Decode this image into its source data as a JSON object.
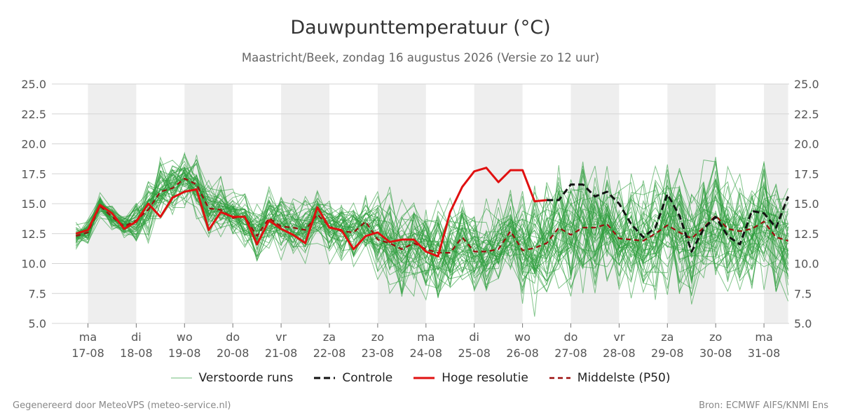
{
  "chart_data": {
    "type": "line",
    "title": "Dauwpunttemperatuur (°C)",
    "subtitle": "Maastricht/Beek, zondag 16 augustus 2026 (Versie zo 12 uur)",
    "ylim": [
      5,
      25
    ],
    "yticks": [
      "5.0",
      "7.5",
      "10.0",
      "12.5",
      "15.0",
      "17.5",
      "20.0",
      "22.5",
      "25.0"
    ],
    "xlim": [
      -0.25,
      14.5
    ],
    "x_ticks": [
      {
        "x": 0,
        "day": "ma",
        "date": "17-08"
      },
      {
        "x": 1,
        "day": "di",
        "date": "18-08"
      },
      {
        "x": 2,
        "day": "wo",
        "date": "19-08"
      },
      {
        "x": 3,
        "day": "do",
        "date": "20-08"
      },
      {
        "x": 4,
        "day": "vr",
        "date": "21-08"
      },
      {
        "x": 5,
        "day": "za",
        "date": "22-08"
      },
      {
        "x": 6,
        "day": "zo",
        "date": "23-08"
      },
      {
        "x": 7,
        "day": "ma",
        "date": "24-08"
      },
      {
        "x": 8,
        "day": "di",
        "date": "25-08"
      },
      {
        "x": 9,
        "day": "wo",
        "date": "26-08"
      },
      {
        "x": 10,
        "day": "do",
        "date": "27-08"
      },
      {
        "x": 11,
        "day": "vr",
        "date": "28-08"
      },
      {
        "x": 12,
        "day": "za",
        "date": "29-08"
      },
      {
        "x": 13,
        "day": "zo",
        "date": "30-08"
      },
      {
        "x": 14,
        "day": "ma",
        "date": "31-08"
      }
    ],
    "shaded_bands": [
      [
        0,
        1
      ],
      [
        2,
        3
      ],
      [
        4,
        5
      ],
      [
        6,
        7
      ],
      [
        8,
        9
      ],
      [
        10,
        11
      ],
      [
        12,
        13
      ],
      [
        14,
        14.5
      ]
    ],
    "grid": true,
    "legend_position": "bottom",
    "series": [
      {
        "name": "Hoge resolutie",
        "color": "#e01010",
        "style": "solid",
        "x": [
          -0.25,
          0,
          0.25,
          0.5,
          0.75,
          1,
          1.25,
          1.5,
          1.75,
          2,
          2.25,
          2.5,
          2.75,
          3,
          3.25,
          3.5,
          3.75,
          4,
          4.25,
          4.5,
          4.75,
          5,
          5.25,
          5.5,
          5.75,
          6,
          6.25,
          6.5,
          6.75,
          7,
          7.25,
          7.5,
          7.75,
          8,
          8.25,
          8.5,
          8.75,
          9,
          9.25,
          9.5
        ],
        "values": [
          12.5,
          12.8,
          14.9,
          14.2,
          12.9,
          13.5,
          15.0,
          13.9,
          15.5,
          16.0,
          16.2,
          12.8,
          14.3,
          13.9,
          13.9,
          11.6,
          13.6,
          12.9,
          12.4,
          11.7,
          14.7,
          13.0,
          12.8,
          11.2,
          12.3,
          12.6,
          11.8,
          12.0,
          12.0,
          11.0,
          10.6,
          14.3,
          16.4,
          17.7,
          18.0,
          16.8,
          17.8,
          17.8,
          15.2,
          15.3
        ]
      },
      {
        "name": "Controle",
        "color": "#111111",
        "style": "dashed",
        "x": [
          9.5,
          9.75,
          10,
          10.25,
          10.5,
          10.75,
          11,
          11.25,
          11.5,
          11.75,
          12,
          12.25,
          12.5,
          12.75,
          13,
          13.25,
          13.5,
          13.75,
          14,
          14.25,
          14.5
        ],
        "values": [
          15.3,
          15.3,
          16.6,
          16.6,
          15.6,
          16.0,
          15.0,
          13.3,
          12.2,
          13.0,
          15.8,
          14.0,
          11.0,
          12.9,
          13.9,
          12.3,
          11.6,
          14.4,
          14.2,
          13.0,
          15.6
        ]
      },
      {
        "name": "Middelste (P50)",
        "color": "#9b0d0d",
        "style": "dashed",
        "x": [
          -0.25,
          0,
          0.25,
          0.5,
          0.75,
          1,
          1.25,
          1.5,
          1.75,
          2,
          2.25,
          2.5,
          2.75,
          3,
          3.25,
          3.5,
          3.75,
          4,
          4.25,
          4.5,
          4.75,
          5,
          5.25,
          5.5,
          5.75,
          6,
          6.25,
          6.5,
          6.75,
          7,
          7.25,
          7.5,
          7.75,
          8,
          8.25,
          8.5,
          8.75,
          9,
          9.25,
          9.5,
          9.75,
          10,
          10.25,
          10.5,
          10.75,
          11,
          11.25,
          11.5,
          11.75,
          12,
          12.25,
          12.5,
          12.75,
          13,
          13.25,
          13.5,
          13.75,
          14,
          14.25,
          14.5
        ],
        "values": [
          12.3,
          12.6,
          14.8,
          13.9,
          13.1,
          13.6,
          14.5,
          16.0,
          16.3,
          17.1,
          16.6,
          14.6,
          14.5,
          13.8,
          13.9,
          12.3,
          13.8,
          13.1,
          13.0,
          12.8,
          14.1,
          13.1,
          12.7,
          12.6,
          13.5,
          12.0,
          11.7,
          11.2,
          11.7,
          11.2,
          10.9,
          10.9,
          12.2,
          11.0,
          11.0,
          11.2,
          12.7,
          11.1,
          11.3,
          11.7,
          13.0,
          12.4,
          13.0,
          13.0,
          13.3,
          12.1,
          12.0,
          11.9,
          12.5,
          13.2,
          12.6,
          12.1,
          13.0,
          14.0,
          12.9,
          12.7,
          12.9,
          13.5,
          12.2,
          11.9
        ]
      }
    ],
    "ensemble": {
      "name": "Verstoorde runs",
      "color": "#2e9e3e",
      "members": 50
    },
    "legend": [
      {
        "label": "Verstoorde runs",
        "color": "#2e9e3e",
        "style": "thin"
      },
      {
        "label": "Controle",
        "color": "#111111",
        "style": "dashed"
      },
      {
        "label": "Hoge resolutie",
        "color": "#e01010",
        "style": "solid"
      },
      {
        "label": "Middelste (P50)",
        "color": "#9b0d0d",
        "style": "dashed"
      }
    ]
  },
  "footer": {
    "left": "Gegenereerd door MeteoVPS (meteo-service.nl)",
    "right": "Bron: ECMWF AIFS/KNMI Ens"
  }
}
